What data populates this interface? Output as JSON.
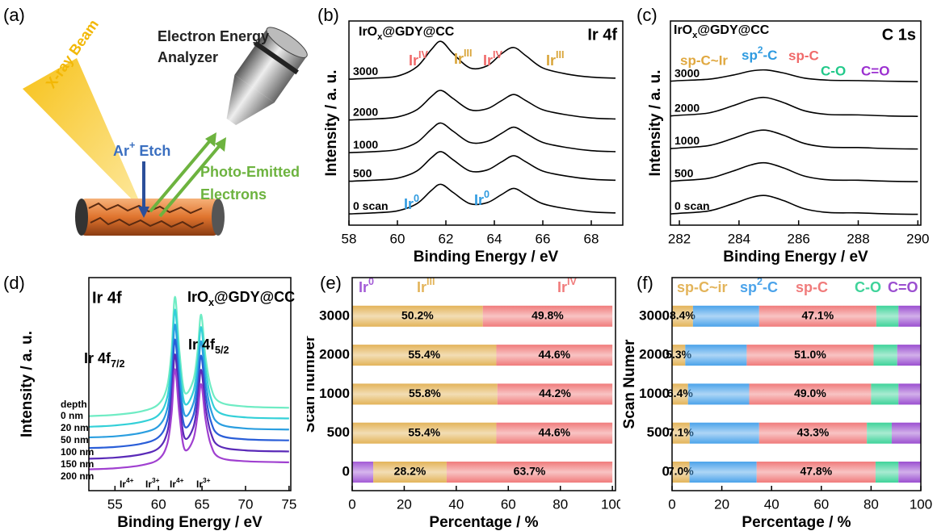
{
  "schematic": {
    "panel": "(a)",
    "labels": [
      "Electron Energy",
      "Analyzer",
      "X-ray Beam",
      [
        {
          "text": "Ar"
        },
        {
          "sup": "+"
        },
        {
          "text": " Etch"
        }
      ],
      "Photo-Emitted",
      "Electrons"
    ]
  },
  "chart_data": [
    {
      "panel": "(b)",
      "type": "line",
      "title": [
        {
          "text": "IrO"
        },
        {
          "sub": "x"
        },
        {
          "text": "@GDY@CC"
        }
      ],
      "label": "Ir 4f",
      "xlabel": "Binding Energy / eV",
      "ylabel": "Intensity / a. u.",
      "xlim": [
        58,
        69.3
      ],
      "xticks": [
        58,
        60,
        62,
        64,
        66,
        68
      ],
      "ylim": [
        0,
        10
      ],
      "x": [
        58,
        59,
        60,
        60.8,
        61.4,
        61.8,
        62.3,
        63,
        63.7,
        64.3,
        64.8,
        65.3,
        66,
        67,
        68,
        69
      ],
      "series": [
        {
          "name": "3000",
          "color": "#000000",
          "values": [
            7.15,
            7.2,
            7.3,
            7.75,
            8.6,
            9.0,
            8.4,
            7.7,
            7.8,
            8.4,
            8.7,
            8.3,
            7.7,
            7.4,
            7.25,
            7.2
          ]
        },
        {
          "name": "2000",
          "color": "#000000",
          "values": [
            5.15,
            5.2,
            5.3,
            5.65,
            6.3,
            6.6,
            6.2,
            5.65,
            5.7,
            6.1,
            6.4,
            6.1,
            5.65,
            5.4,
            5.25,
            5.2
          ]
        },
        {
          "name": "1000",
          "color": "#000000",
          "values": [
            3.55,
            3.6,
            3.7,
            4.05,
            4.7,
            5.0,
            4.6,
            4.05,
            4.1,
            4.5,
            4.8,
            4.5,
            4.05,
            3.8,
            3.65,
            3.6
          ]
        },
        {
          "name": "500",
          "color": "#000000",
          "values": [
            2.15,
            2.2,
            2.3,
            2.65,
            3.3,
            3.6,
            3.2,
            2.65,
            2.7,
            3.1,
            3.4,
            3.1,
            2.65,
            2.4,
            2.25,
            2.2
          ]
        },
        {
          "name": "0 scan",
          "color": "#000000",
          "values": [
            0.55,
            0.6,
            0.7,
            1.05,
            1.7,
            2.0,
            1.6,
            1.05,
            1.1,
            1.5,
            1.8,
            1.5,
            1.05,
            0.8,
            0.65,
            0.6
          ]
        }
      ],
      "annotations": [
        {
          "text": [
            {
              "text": "Ir"
            },
            {
              "sup": "IV"
            }
          ],
          "color": "#f06a6a"
        },
        {
          "text": [
            {
              "text": "Ir"
            },
            {
              "sup": "III"
            }
          ],
          "color": "#d9a53a"
        },
        {
          "text": [
            {
              "text": "Ir"
            },
            {
              "sup": "IV"
            }
          ],
          "color": "#f06a6a"
        },
        {
          "text": [
            {
              "text": "Ir"
            },
            {
              "sup": "III"
            }
          ],
          "color": "#d9a53a"
        },
        {
          "text": [
            {
              "text": "Ir"
            },
            {
              "sup": "0"
            }
          ],
          "color": "#2f9be0"
        },
        {
          "text": [
            {
              "text": "Ir"
            },
            {
              "sup": "0"
            }
          ],
          "color": "#2f9be0"
        }
      ]
    },
    {
      "panel": "(c)",
      "type": "line",
      "title": [
        {
          "text": "IrO"
        },
        {
          "sub": "x"
        },
        {
          "text": "@GDY@CC"
        }
      ],
      "label": "C 1s",
      "xlabel": "Binding Energy / eV",
      "ylabel": "Intensity / a. u.",
      "xlim": [
        281.7,
        290.1
      ],
      "xticks": [
        282,
        284,
        286,
        288,
        290
      ],
      "ylim": [
        0,
        10
      ],
      "x": [
        281.7,
        282,
        283,
        283.8,
        284.4,
        284.9,
        285.5,
        286.2,
        287,
        288,
        289,
        290
      ],
      "series": [
        {
          "name": "3000",
          "color": "#000000",
          "values": [
            7.05,
            7.08,
            7.15,
            7.35,
            7.55,
            7.6,
            7.45,
            7.2,
            7.1,
            7.08,
            7.05,
            7.03
          ]
        },
        {
          "name": "2000",
          "color": "#000000",
          "values": [
            5.35,
            5.38,
            5.5,
            5.85,
            6.15,
            6.25,
            6.0,
            5.6,
            5.42,
            5.4,
            5.35,
            5.33
          ]
        },
        {
          "name": "1000",
          "color": "#000000",
          "values": [
            3.75,
            3.78,
            3.9,
            4.25,
            4.55,
            4.65,
            4.4,
            4.0,
            3.82,
            3.8,
            3.75,
            3.73
          ]
        },
        {
          "name": "500",
          "color": "#000000",
          "values": [
            2.15,
            2.18,
            2.3,
            2.65,
            2.95,
            3.05,
            2.8,
            2.4,
            2.22,
            2.2,
            2.15,
            2.13
          ]
        },
        {
          "name": "0 scan",
          "color": "#000000",
          "values": [
            0.55,
            0.58,
            0.7,
            1.05,
            1.35,
            1.45,
            1.2,
            0.8,
            0.62,
            0.6,
            0.55,
            0.53
          ]
        }
      ],
      "annotations": [
        {
          "text": "sp-C~Ir",
          "color": "#e0a840"
        },
        {
          "text": [
            {
              "text": "sp"
            },
            {
              "sup": "2"
            },
            {
              "text": "-C"
            }
          ],
          "color": "#2f9be0"
        },
        {
          "text": "sp-C",
          "color": "#f06a6a"
        },
        {
          "text": "C-O",
          "color": "#22c98a"
        },
        {
          "text": "C=O",
          "color": "#9b30d0"
        }
      ]
    },
    {
      "panel": "(d)",
      "type": "line",
      "title": [
        {
          "text": "IrO"
        },
        {
          "sub": "x"
        },
        {
          "text": "@GDY@CC"
        }
      ],
      "label": "Ir 4f",
      "xlabel": "Binding Energy / eV",
      "ylabel": "Intensity / a. u.",
      "legend_title": "depth",
      "xlim": [
        52,
        75.2
      ],
      "xticks": [
        55,
        60,
        65,
        70,
        75
      ],
      "ylim": [
        0,
        10
      ],
      "x": [
        52,
        55,
        58,
        60,
        61,
        61.5,
        61.9,
        62.4,
        63,
        64,
        64.5,
        64.9,
        65.4,
        66,
        67,
        70,
        75
      ],
      "series": [
        {
          "name": "0 nm",
          "color": "#6fecc4",
          "values": [
            3.5,
            3.56,
            3.72,
            4.06,
            4.9,
            6.58,
            9.1,
            6.58,
            4.62,
            5.18,
            6.58,
            8.26,
            6.3,
            4.9,
            4.17,
            3.95,
            3.89
          ]
        },
        {
          "name": "20 nm",
          "color": "#33d0d8",
          "values": [
            3.0,
            3.06,
            3.22,
            3.55,
            4.38,
            6.03,
            8.5,
            6.03,
            4.1,
            4.65,
            6.03,
            7.68,
            5.75,
            4.38,
            3.66,
            3.44,
            3.39
          ]
        },
        {
          "name": "50 nm",
          "color": "#2a9ee0",
          "values": [
            2.5,
            2.55,
            2.71,
            3.03,
            3.83,
            5.42,
            7.8,
            5.42,
            3.56,
            4.09,
            5.42,
            7.01,
            5.15,
            3.83,
            3.14,
            2.92,
            2.87
          ]
        },
        {
          "name": "100 nm",
          "color": "#2a5ed8",
          "values": [
            2.0,
            2.05,
            2.2,
            2.51,
            3.28,
            4.81,
            7.1,
            4.81,
            3.02,
            3.53,
            4.81,
            6.34,
            4.55,
            3.28,
            2.61,
            2.41,
            2.36
          ]
        },
        {
          "name": "150 nm",
          "color": "#5a2ab8",
          "values": [
            1.5,
            1.55,
            1.7,
            1.99,
            2.73,
            4.2,
            6.4,
            4.2,
            2.48,
            2.97,
            4.2,
            5.67,
            3.95,
            2.73,
            2.09,
            1.89,
            1.84
          ]
        },
        {
          "name": "200 nm",
          "color": "#a040d0",
          "values": [
            1.0,
            1.05,
            1.19,
            1.47,
            2.18,
            3.59,
            5.7,
            3.59,
            1.94,
            2.41,
            3.59,
            5.0,
            3.35,
            2.18,
            1.56,
            1.38,
            1.33
          ]
        }
      ],
      "annotations": [
        {
          "text": [
            {
              "text": "Ir 4f"
            },
            {
              "sub": "7/2"
            }
          ],
          "color": "#000000"
        },
        {
          "text": [
            {
              "text": "Ir 4f"
            },
            {
              "sub": "5/2"
            }
          ],
          "color": "#000000"
        },
        {
          "text": [
            {
              "text": "Ir"
            },
            {
              "sup": "4+"
            }
          ],
          "color": "#000000"
        },
        {
          "text": [
            {
              "text": "Ir"
            },
            {
              "sup": "3+"
            }
          ],
          "color": "#000000"
        },
        {
          "text": [
            {
              "text": "Ir"
            },
            {
              "sup": "4+"
            }
          ],
          "color": "#000000"
        },
        {
          "text": [
            {
              "text": "Ir"
            },
            {
              "sup": "3+"
            }
          ],
          "color": "#000000"
        }
      ]
    },
    {
      "panel": "(e)",
      "type": "bar",
      "orientation": "horizontal",
      "stacked": true,
      "xlabel": "Percentage / %",
      "ylabel": "Scan number",
      "xlim": [
        0,
        101.2
      ],
      "xticks": [
        0,
        20,
        40,
        60,
        80,
        100
      ],
      "categories": [
        "0",
        "500",
        "1000",
        "2000",
        "3000"
      ],
      "series": [
        {
          "name": [
            {
              "text": "Ir"
            },
            {
              "sup": "0"
            }
          ],
          "color": "#a35bd6",
          "values": [
            8.1,
            0,
            0,
            0,
            0
          ]
        },
        {
          "name": [
            {
              "text": "Ir"
            },
            {
              "sup": "III"
            }
          ],
          "color": "#e3b45a",
          "values": [
            28.2,
            55.4,
            55.8,
            55.4,
            50.2
          ],
          "value_labels": [
            "28.2%",
            "55.4%",
            "55.8%",
            "55.4%",
            "50.2%"
          ]
        },
        {
          "name": [
            {
              "text": "Ir"
            },
            {
              "sup": "IV"
            }
          ],
          "color": "#f07b7b",
          "values": [
            63.7,
            44.6,
            44.2,
            44.6,
            49.8
          ],
          "value_labels": [
            "63.7%",
            "44.6%",
            "44.2%",
            "44.6%",
            "49.8%"
          ]
        }
      ]
    },
    {
      "panel": "(f)",
      "type": "bar",
      "orientation": "horizontal",
      "stacked": true,
      "xlabel": "Percentage / %",
      "ylabel": "Scan Numer",
      "xlim": [
        0,
        100
      ],
      "xticks": [
        0,
        20,
        40,
        60,
        80,
        100
      ],
      "categories": [
        "0",
        "500",
        "1000",
        "2000",
        "3000"
      ],
      "series": [
        {
          "name": "sp-C~ir",
          "color": "#e3b45a",
          "values": [
            7.0,
            7.1,
            6.4,
            5.3,
            8.4
          ],
          "value_labels": [
            "7.0%",
            "7.1%",
            "6.4%",
            "5.3%",
            "8.4%"
          ]
        },
        {
          "name": [
            {
              "text": "sp"
            },
            {
              "sup": "2"
            },
            {
              "text": "-C"
            }
          ],
          "color": "#4ba3ea",
          "values": [
            27.0,
            27.9,
            24.6,
            24.7,
            26.6
          ]
        },
        {
          "name": "sp-C",
          "color": "#f07b7b",
          "values": [
            47.8,
            43.3,
            49.0,
            51.0,
            47.1
          ],
          "value_labels": [
            "47.8%",
            "43.3%",
            "49.0%",
            "51.0%",
            "47.1%"
          ]
        },
        {
          "name": "C-O",
          "color": "#3fd39a",
          "values": [
            9.2,
            10.0,
            11.0,
            9.5,
            8.9
          ]
        },
        {
          "name": "C=O",
          "color": "#9b4fd0",
          "values": [
            9.0,
            11.7,
            9.0,
            9.5,
            9.0
          ]
        }
      ]
    }
  ]
}
